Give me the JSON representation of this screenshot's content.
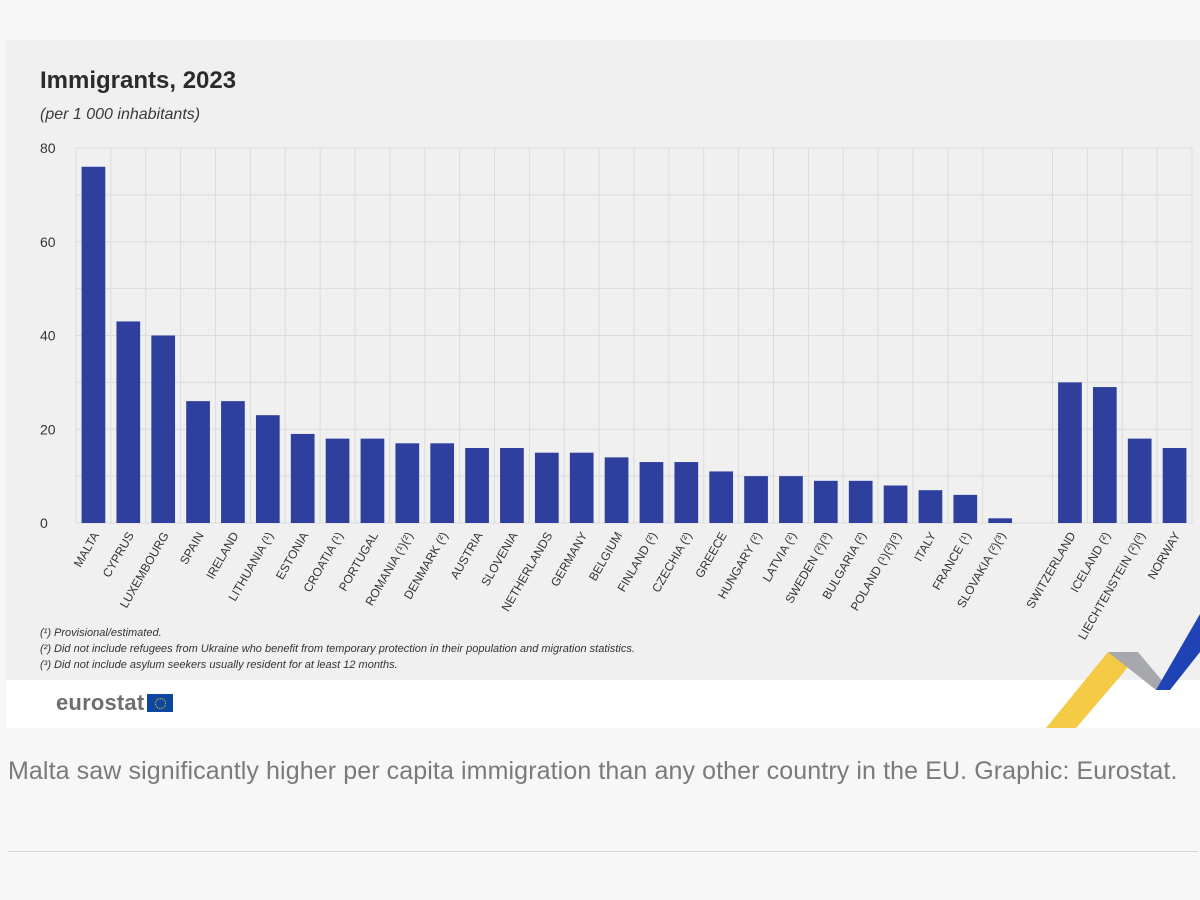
{
  "chart_data": {
    "type": "bar",
    "title": "Immigrants, 2023",
    "subtitle": "(per 1 000 inhabitants)",
    "categories": [
      "MALTA",
      "CYPRUS",
      "LUXEMBOURG",
      "SPAIN",
      "IRELAND",
      "LITHUANIA (¹)",
      "ESTONIA",
      "CROATIA (¹)",
      "PORTUGAL",
      "ROMANIA (¹)(²)",
      "DENMARK (²)",
      "AUSTRIA",
      "SLOVENIA",
      "NETHERLANDS",
      "GERMANY",
      "BELGIUM",
      "FINLAND (²)",
      "CZECHIA (²)",
      "GREECE",
      "HUNGARY (²)",
      "LATVIA (²)",
      "SWEDEN (²)(³)",
      "BULGARIA (²)",
      "POLAND (¹)(²)(³)",
      "ITALY",
      "FRANCE (¹)",
      "SLOVAKIA (²)(³)",
      "SWITZERLAND",
      "ICELAND (²)",
      "LIECHTENSTEIN (²)(³)",
      "NORWAY"
    ],
    "values": [
      76,
      43,
      40,
      26,
      26,
      23,
      19,
      18,
      18,
      17,
      17,
      16,
      16,
      15,
      15,
      14,
      13,
      13,
      11,
      10,
      10,
      9,
      9,
      8,
      7,
      6,
      1,
      30,
      29,
      18,
      16
    ],
    "ylim": [
      0,
      80
    ],
    "yticks": [
      0,
      20,
      40,
      60,
      80
    ],
    "group_gap_after": 26,
    "bar_color": "#2e3f9e",
    "grid": true,
    "xlabel": "",
    "ylabel": ""
  },
  "footnotes": [
    "(¹) Provisional/estimated.",
    "(²) Did not include refugees from Ukraine who benefit from temporary protection in their population and migration statistics.",
    "(³) Did not include asylum seekers usually resident for at least 12 months."
  ],
  "logo": {
    "text": "eurostat"
  },
  "caption": "Malta saw significantly higher per capita immigration than any other country in the EU. Graphic: Eurostat.",
  "colors": {
    "bar": "#2e3f9e",
    "grid": "#dcdce0",
    "chart_bg": "#f0f0f1",
    "accent_yellow": "#f4c430",
    "accent_blue": "#1f43b5"
  }
}
